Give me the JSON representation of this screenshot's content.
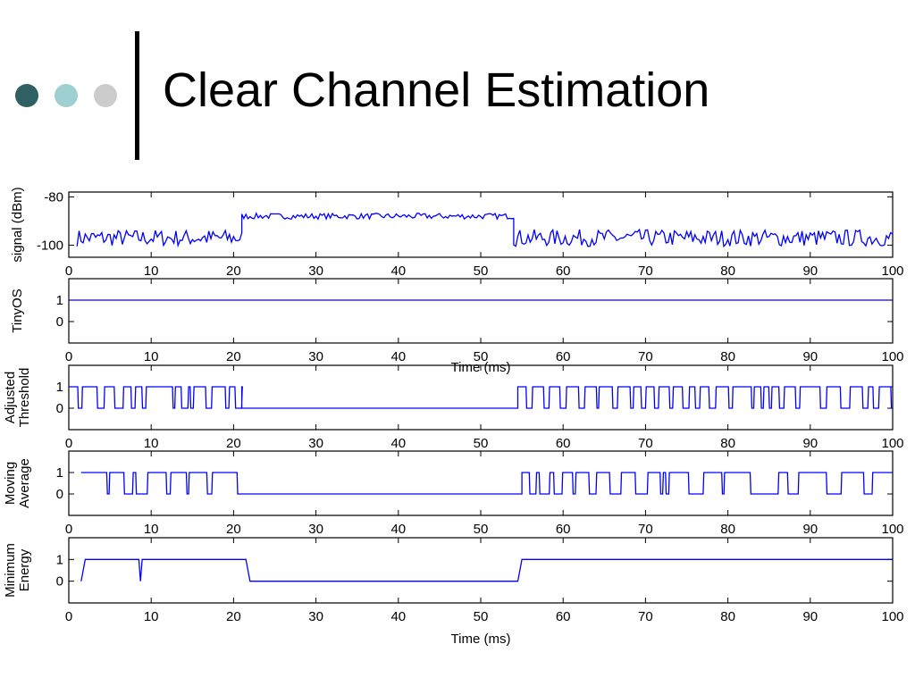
{
  "slide": {
    "title": "Clear Channel Estimation",
    "bullet_dot_colors": [
      "#2e6064",
      "#9ecfd1",
      "#cccccc"
    ]
  },
  "chart_data": [
    {
      "type": "line",
      "ylabel_lines": [
        "signal (dBm)"
      ],
      "xlim": [
        0,
        100
      ],
      "ylim": [
        -105,
        -78
      ],
      "yticks": [
        -80,
        -100
      ],
      "xticks": [
        0,
        10,
        20,
        30,
        40,
        50,
        60,
        70,
        80,
        90,
        100
      ],
      "color": "#0000ff",
      "segments": [
        {
          "x": [
            1,
            21
          ],
          "level": -97,
          "amplitude": 3.5
        },
        {
          "x": [
            21,
            54
          ],
          "level": -88,
          "amplitude": 1.2
        },
        {
          "x": [
            54,
            100
          ],
          "level": -97,
          "amplitude": 3.5
        }
      ]
    },
    {
      "type": "line",
      "ylabel_lines": [
        "TinyOS"
      ],
      "xlim": [
        0,
        100
      ],
      "ylim": [
        -1,
        2
      ],
      "yticks": [
        1,
        0
      ],
      "xticks": [
        0,
        10,
        20,
        30,
        40,
        50,
        60,
        70,
        80,
        90,
        100
      ],
      "color": "#0000ff",
      "x": [
        0,
        100
      ],
      "y": [
        1,
        1
      ],
      "overlap_label": "Time (ms)"
    },
    {
      "type": "line",
      "ylabel_lines": [
        "Adjusted",
        "Threshold"
      ],
      "xlim": [
        0,
        100
      ],
      "ylim": [
        -1,
        2
      ],
      "yticks": [
        1,
        0
      ],
      "xticks": [
        0,
        10,
        20,
        30,
        40,
        50,
        60,
        70,
        80,
        90,
        100
      ],
      "color": "#0000ff",
      "segments": [
        {
          "x": [
            0,
            21
          ],
          "level": 1,
          "toggle_rate": 0.55
        },
        {
          "x": [
            21,
            54.5
          ],
          "level": 0
        },
        {
          "x": [
            54.5,
            100
          ],
          "level": 1,
          "toggle_rate": 0.6
        }
      ]
    },
    {
      "type": "line",
      "ylabel_lines": [
        "Moving",
        "Average"
      ],
      "xlim": [
        0,
        100
      ],
      "ylim": [
        -1,
        2
      ],
      "yticks": [
        1,
        0
      ],
      "xticks": [
        0,
        10,
        20,
        30,
        40,
        50,
        60,
        70,
        80,
        90,
        100
      ],
      "color": "#0000ff",
      "segments": [
        {
          "x": [
            1.5,
            21
          ],
          "level": 1,
          "toggle_rate": 0.3
        },
        {
          "x": [
            21,
            55
          ],
          "level": 0
        },
        {
          "x": [
            55,
            100
          ],
          "level": 1,
          "toggle_rate": 0.28
        }
      ]
    },
    {
      "type": "line",
      "ylabel_lines": [
        "Minimum",
        "Energy"
      ],
      "xlim": [
        0,
        100
      ],
      "ylim": [
        -1,
        2
      ],
      "yticks": [
        1,
        0
      ],
      "xticks": [
        0,
        10,
        20,
        30,
        40,
        50,
        60,
        70,
        80,
        90,
        100
      ],
      "xlabel": "Time (ms)",
      "color": "#0000ff",
      "x": [
        1.5,
        1.5,
        2,
        8.5,
        8.7,
        8.9,
        21.5,
        22,
        54.5,
        55,
        100
      ],
      "y": [
        0,
        0,
        1,
        1,
        0,
        1,
        1,
        0,
        0,
        1,
        1
      ]
    }
  ]
}
